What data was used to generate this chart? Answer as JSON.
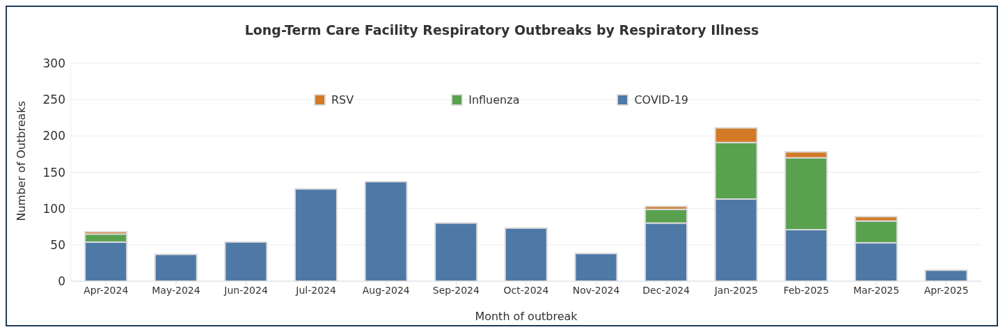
{
  "chart_data": {
    "type": "bar",
    "title": "Long-Term Care Facility Respiratory Outbreaks by Respiratory Illness",
    "xlabel": "Month of outbreak",
    "ylabel": "Number of Outbreaks",
    "categories": [
      "Apr-2024",
      "May-2024",
      "Jun-2024",
      "Jul-2024",
      "Aug-2024",
      "Sep-2024",
      "Oct-2024",
      "Nov-2024",
      "Dec-2024",
      "Jan-2025",
      "Feb-2025",
      "Mar-2025",
      "Apr-2025"
    ],
    "series": [
      {
        "name": "COVID-19",
        "color": "#4e79a7",
        "values": [
          54,
          37,
          54,
          127,
          137,
          80,
          73,
          38,
          80,
          113,
          71,
          53,
          15
        ]
      },
      {
        "name": "Influenza",
        "color": "#59a14f",
        "values": [
          11,
          null,
          null,
          null,
          null,
          null,
          null,
          null,
          19,
          78,
          99,
          30,
          null
        ]
      },
      {
        "name": "RSV",
        "color": "#d37a27",
        "values": [
          3,
          null,
          null,
          null,
          null,
          null,
          null,
          null,
          4,
          20,
          8,
          6,
          null
        ]
      }
    ],
    "stacked": true,
    "ylim": [
      0,
      300
    ],
    "yticks": [
      0,
      50,
      100,
      150,
      200,
      250,
      300
    ],
    "grid": "y",
    "legend": "top"
  }
}
